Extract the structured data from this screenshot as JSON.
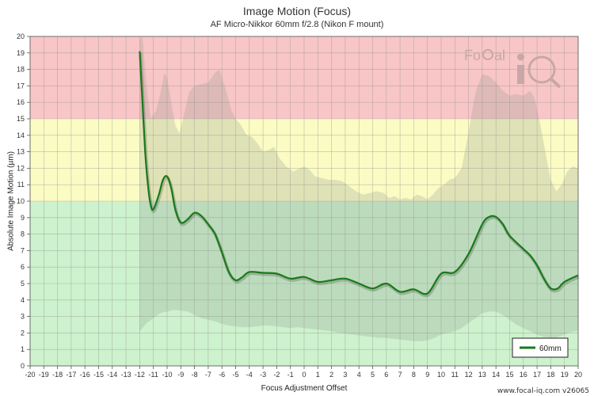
{
  "chart_data": {
    "type": "line",
    "title": "Image Motion (Focus)",
    "subtitle": "AF Micro-Nikkor 60mm f/2.8 (Nikon F mount)",
    "xlabel": "Focus Adjustment Offset",
    "ylabel": "Absolute Image Motion (µm)",
    "xlim": [
      -20,
      20
    ],
    "ylim": [
      0,
      20
    ],
    "xticks": [
      -20,
      -19,
      -18,
      -17,
      -16,
      -15,
      -14,
      -13,
      -12,
      -11,
      -10,
      -9,
      -8,
      -7,
      -6,
      -5,
      -4,
      -3,
      -2,
      -1,
      0,
      1,
      2,
      3,
      4,
      5,
      6,
      7,
      8,
      9,
      10,
      11,
      12,
      13,
      14,
      15,
      16,
      17,
      18,
      19,
      20
    ],
    "yticks": [
      0,
      1,
      2,
      3,
      4,
      5,
      6,
      7,
      8,
      9,
      10,
      11,
      12,
      13,
      14,
      15,
      16,
      17,
      18,
      19,
      20
    ],
    "grid": true,
    "legend_position": "bottom-right",
    "bands": [
      {
        "from": 0,
        "to": 10,
        "color": "#cdf2cd"
      },
      {
        "from": 10,
        "to": 15,
        "color": "#fbfbc4"
      },
      {
        "from": 15,
        "to": 20,
        "color": "#f8c6c6"
      }
    ],
    "series": [
      {
        "name": "60mm",
        "color": "#1a7a1a",
        "x": [
          -12,
          -11.8,
          -11.6,
          -11.4,
          -11.2,
          -11,
          -10.6,
          -10.3,
          -10,
          -9.7,
          -9.4,
          -9,
          -8.5,
          -8,
          -7.5,
          -7,
          -6.5,
          -6,
          -5.5,
          -5,
          -4.5,
          -4,
          -3,
          -2,
          -1,
          0,
          1,
          2,
          3,
          4,
          5,
          6,
          7,
          8,
          9,
          10,
          11,
          12,
          13,
          13.5,
          14,
          14.5,
          15,
          16,
          16.5,
          17,
          17.5,
          18,
          18.5,
          19,
          20
        ],
        "y": [
          19.1,
          16,
          13,
          11,
          9.8,
          9.5,
          10.4,
          11.3,
          11.5,
          10.8,
          9.5,
          8.7,
          8.9,
          9.3,
          9.1,
          8.6,
          8,
          6.9,
          5.7,
          5.2,
          5.4,
          5.7,
          5.65,
          5.6,
          5.3,
          5.4,
          5.1,
          5.2,
          5.3,
          5,
          4.7,
          5,
          4.5,
          4.65,
          4.4,
          5.6,
          5.7,
          6.8,
          8.6,
          9.05,
          9.05,
          8.6,
          7.9,
          7.1,
          6.7,
          6.1,
          5.3,
          4.7,
          4.7,
          5.1,
          5.5
        ],
        "range_upper": [
          [
            -12,
            19.8
          ],
          [
            -11.8,
            20
          ],
          [
            -11.5,
            17
          ],
          [
            -11.2,
            15
          ],
          [
            -10.8,
            15.5
          ],
          [
            -10.5,
            16.5
          ],
          [
            -10.2,
            17.8
          ],
          [
            -10,
            17.5
          ],
          [
            -9.7,
            16
          ],
          [
            -9.4,
            14.6
          ],
          [
            -9.1,
            14.1
          ],
          [
            -8.7,
            15.5
          ],
          [
            -8.4,
            16.6
          ],
          [
            -8,
            17
          ],
          [
            -7.5,
            17.1
          ],
          [
            -7,
            17.2
          ],
          [
            -6.5,
            17.8
          ],
          [
            -6.2,
            18
          ],
          [
            -5.8,
            17
          ],
          [
            -5.3,
            15.5
          ],
          [
            -5,
            15
          ],
          [
            -4.6,
            14.6
          ],
          [
            -4.2,
            14
          ],
          [
            -3.8,
            13.9
          ],
          [
            -3.4,
            13.5
          ],
          [
            -3,
            13
          ],
          [
            -2.6,
            13.1
          ],
          [
            -2.2,
            13.3
          ],
          [
            -1.8,
            12.6
          ],
          [
            -1.3,
            12.1
          ],
          [
            -0.8,
            11.8
          ],
          [
            -0.3,
            12
          ],
          [
            0,
            12.1
          ],
          [
            0.4,
            11.9
          ],
          [
            0.8,
            11.5
          ],
          [
            1.3,
            11.4
          ],
          [
            1.8,
            11.3
          ],
          [
            2.3,
            11.3
          ],
          [
            2.8,
            11.2
          ],
          [
            3.3,
            10.9
          ],
          [
            3.8,
            10.6
          ],
          [
            4.3,
            10.4
          ],
          [
            4.8,
            10.5
          ],
          [
            5.3,
            10.6
          ],
          [
            5.8,
            10.5
          ],
          [
            6.2,
            10.2
          ],
          [
            6.6,
            10.3
          ],
          [
            7,
            10.1
          ],
          [
            7.4,
            10.2
          ],
          [
            7.8,
            10.1
          ],
          [
            8.2,
            10.4
          ],
          [
            8.6,
            10.3
          ],
          [
            9,
            10.1
          ],
          [
            9.4,
            10.4
          ],
          [
            9.8,
            10.8
          ],
          [
            10.2,
            11
          ],
          [
            10.6,
            11.3
          ],
          [
            11,
            11.4
          ],
          [
            11.5,
            12
          ],
          [
            12,
            14.2
          ],
          [
            12.5,
            16.6
          ],
          [
            13,
            17.7
          ],
          [
            13.5,
            17.6
          ],
          [
            14,
            17.2
          ],
          [
            14.5,
            16.7
          ],
          [
            15,
            16.4
          ],
          [
            15.5,
            16.5
          ],
          [
            16,
            16.4
          ],
          [
            16.5,
            16.7
          ],
          [
            16.8,
            16.3
          ],
          [
            17.2,
            14.8
          ],
          [
            17.6,
            13
          ],
          [
            18,
            11.3
          ],
          [
            18.4,
            10.6
          ],
          [
            18.8,
            11
          ],
          [
            19.2,
            11.8
          ],
          [
            19.6,
            12.1
          ],
          [
            20,
            12
          ]
        ],
        "range_lower": [
          [
            -12,
            2.1
          ],
          [
            -11.5,
            2.6
          ],
          [
            -11,
            2.9
          ],
          [
            -10.5,
            3.2
          ],
          [
            -10,
            3.3
          ],
          [
            -9.5,
            3.4
          ],
          [
            -9,
            3.35
          ],
          [
            -8.5,
            3.3
          ],
          [
            -8,
            3.1
          ],
          [
            -7.5,
            2.9
          ],
          [
            -7,
            2.8
          ],
          [
            -6.5,
            2.7
          ],
          [
            -6,
            2.55
          ],
          [
            -5.5,
            2.45
          ],
          [
            -5,
            2.4
          ],
          [
            -4.5,
            2.35
          ],
          [
            -4,
            2.35
          ],
          [
            -3.5,
            2.4
          ],
          [
            -3,
            2.45
          ],
          [
            -2.5,
            2.45
          ],
          [
            -2,
            2.4
          ],
          [
            -1.5,
            2.35
          ],
          [
            -1,
            2.3
          ],
          [
            -0.5,
            2.35
          ],
          [
            0,
            2.3
          ],
          [
            0.5,
            2.25
          ],
          [
            1,
            2.2
          ],
          [
            1.5,
            2.15
          ],
          [
            2,
            2.1
          ],
          [
            2.5,
            2
          ],
          [
            3,
            1.95
          ],
          [
            3.5,
            1.9
          ],
          [
            4,
            1.85
          ],
          [
            4.5,
            1.8
          ],
          [
            5,
            1.75
          ],
          [
            5.5,
            1.7
          ],
          [
            6,
            1.7
          ],
          [
            6.5,
            1.65
          ],
          [
            7,
            1.6
          ],
          [
            7.5,
            1.55
          ],
          [
            8,
            1.5
          ],
          [
            8.5,
            1.5
          ],
          [
            9,
            1.55
          ],
          [
            9.5,
            1.7
          ],
          [
            10,
            1.9
          ],
          [
            10.5,
            2
          ],
          [
            11,
            2.1
          ],
          [
            11.5,
            2.3
          ],
          [
            12,
            2.6
          ],
          [
            12.5,
            2.9
          ],
          [
            13,
            3.2
          ],
          [
            13.5,
            3.3
          ],
          [
            14,
            3.3
          ],
          [
            14.5,
            3.1
          ],
          [
            15,
            2.8
          ],
          [
            15.5,
            2.5
          ],
          [
            16,
            2.3
          ],
          [
            16.5,
            2.1
          ],
          [
            17,
            1.9
          ],
          [
            17.5,
            1.75
          ],
          [
            18,
            1.7
          ],
          [
            18.5,
            1.75
          ],
          [
            19,
            1.9
          ],
          [
            19.5,
            2.05
          ],
          [
            20,
            2.15
          ]
        ]
      }
    ]
  },
  "legend": {
    "label": "60mm"
  },
  "footer": {
    "version": "www.focal-iq.com  v26065"
  },
  "colors": {
    "line": "#1a7a1a",
    "band_fill": "rgba(140,150,140,0.25)",
    "grid": "#8a8a8a"
  }
}
